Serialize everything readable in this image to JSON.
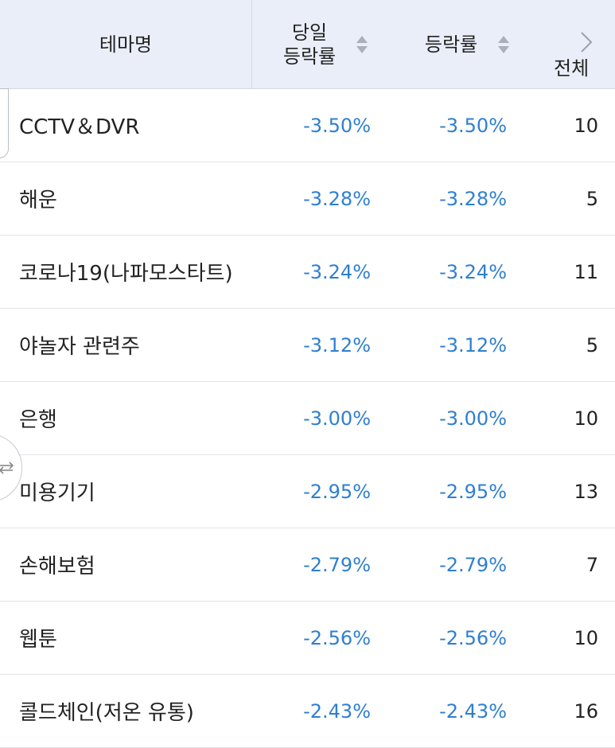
{
  "header": {
    "theme_label": "테마명",
    "today_line1": "당일",
    "today_line2": "등락률",
    "rate_label": "등락률",
    "total_label": "전체"
  },
  "icons": {
    "sort": "sort-updown-icon",
    "next": "chevron-right-icon",
    "swap": "swap-arrows-icon"
  },
  "colors": {
    "header_bg": "#e9eef8",
    "negative": "#2f7fd0"
  },
  "rows": [
    {
      "theme": "CCTV＆DVR",
      "today": "-3.50%",
      "rate": "-3.50%",
      "count": "10"
    },
    {
      "theme": "해운",
      "today": "-3.28%",
      "rate": "-3.28%",
      "count": "5"
    },
    {
      "theme": "코로나19(나파모스타트)",
      "today": "-3.24%",
      "rate": "-3.24%",
      "count": "11"
    },
    {
      "theme": "야놀자 관련주",
      "today": "-3.12%",
      "rate": "-3.12%",
      "count": "5"
    },
    {
      "theme": "은행",
      "today": "-3.00%",
      "rate": "-3.00%",
      "count": "10"
    },
    {
      "theme": "미용기기",
      "today": "-2.95%",
      "rate": "-2.95%",
      "count": "13"
    },
    {
      "theme": "손해보험",
      "today": "-2.79%",
      "rate": "-2.79%",
      "count": "7"
    },
    {
      "theme": "웹툰",
      "today": "-2.56%",
      "rate": "-2.56%",
      "count": "10"
    },
    {
      "theme": "콜드체인(저온 유통)",
      "today": "-2.43%",
      "rate": "-2.43%",
      "count": "16"
    }
  ]
}
